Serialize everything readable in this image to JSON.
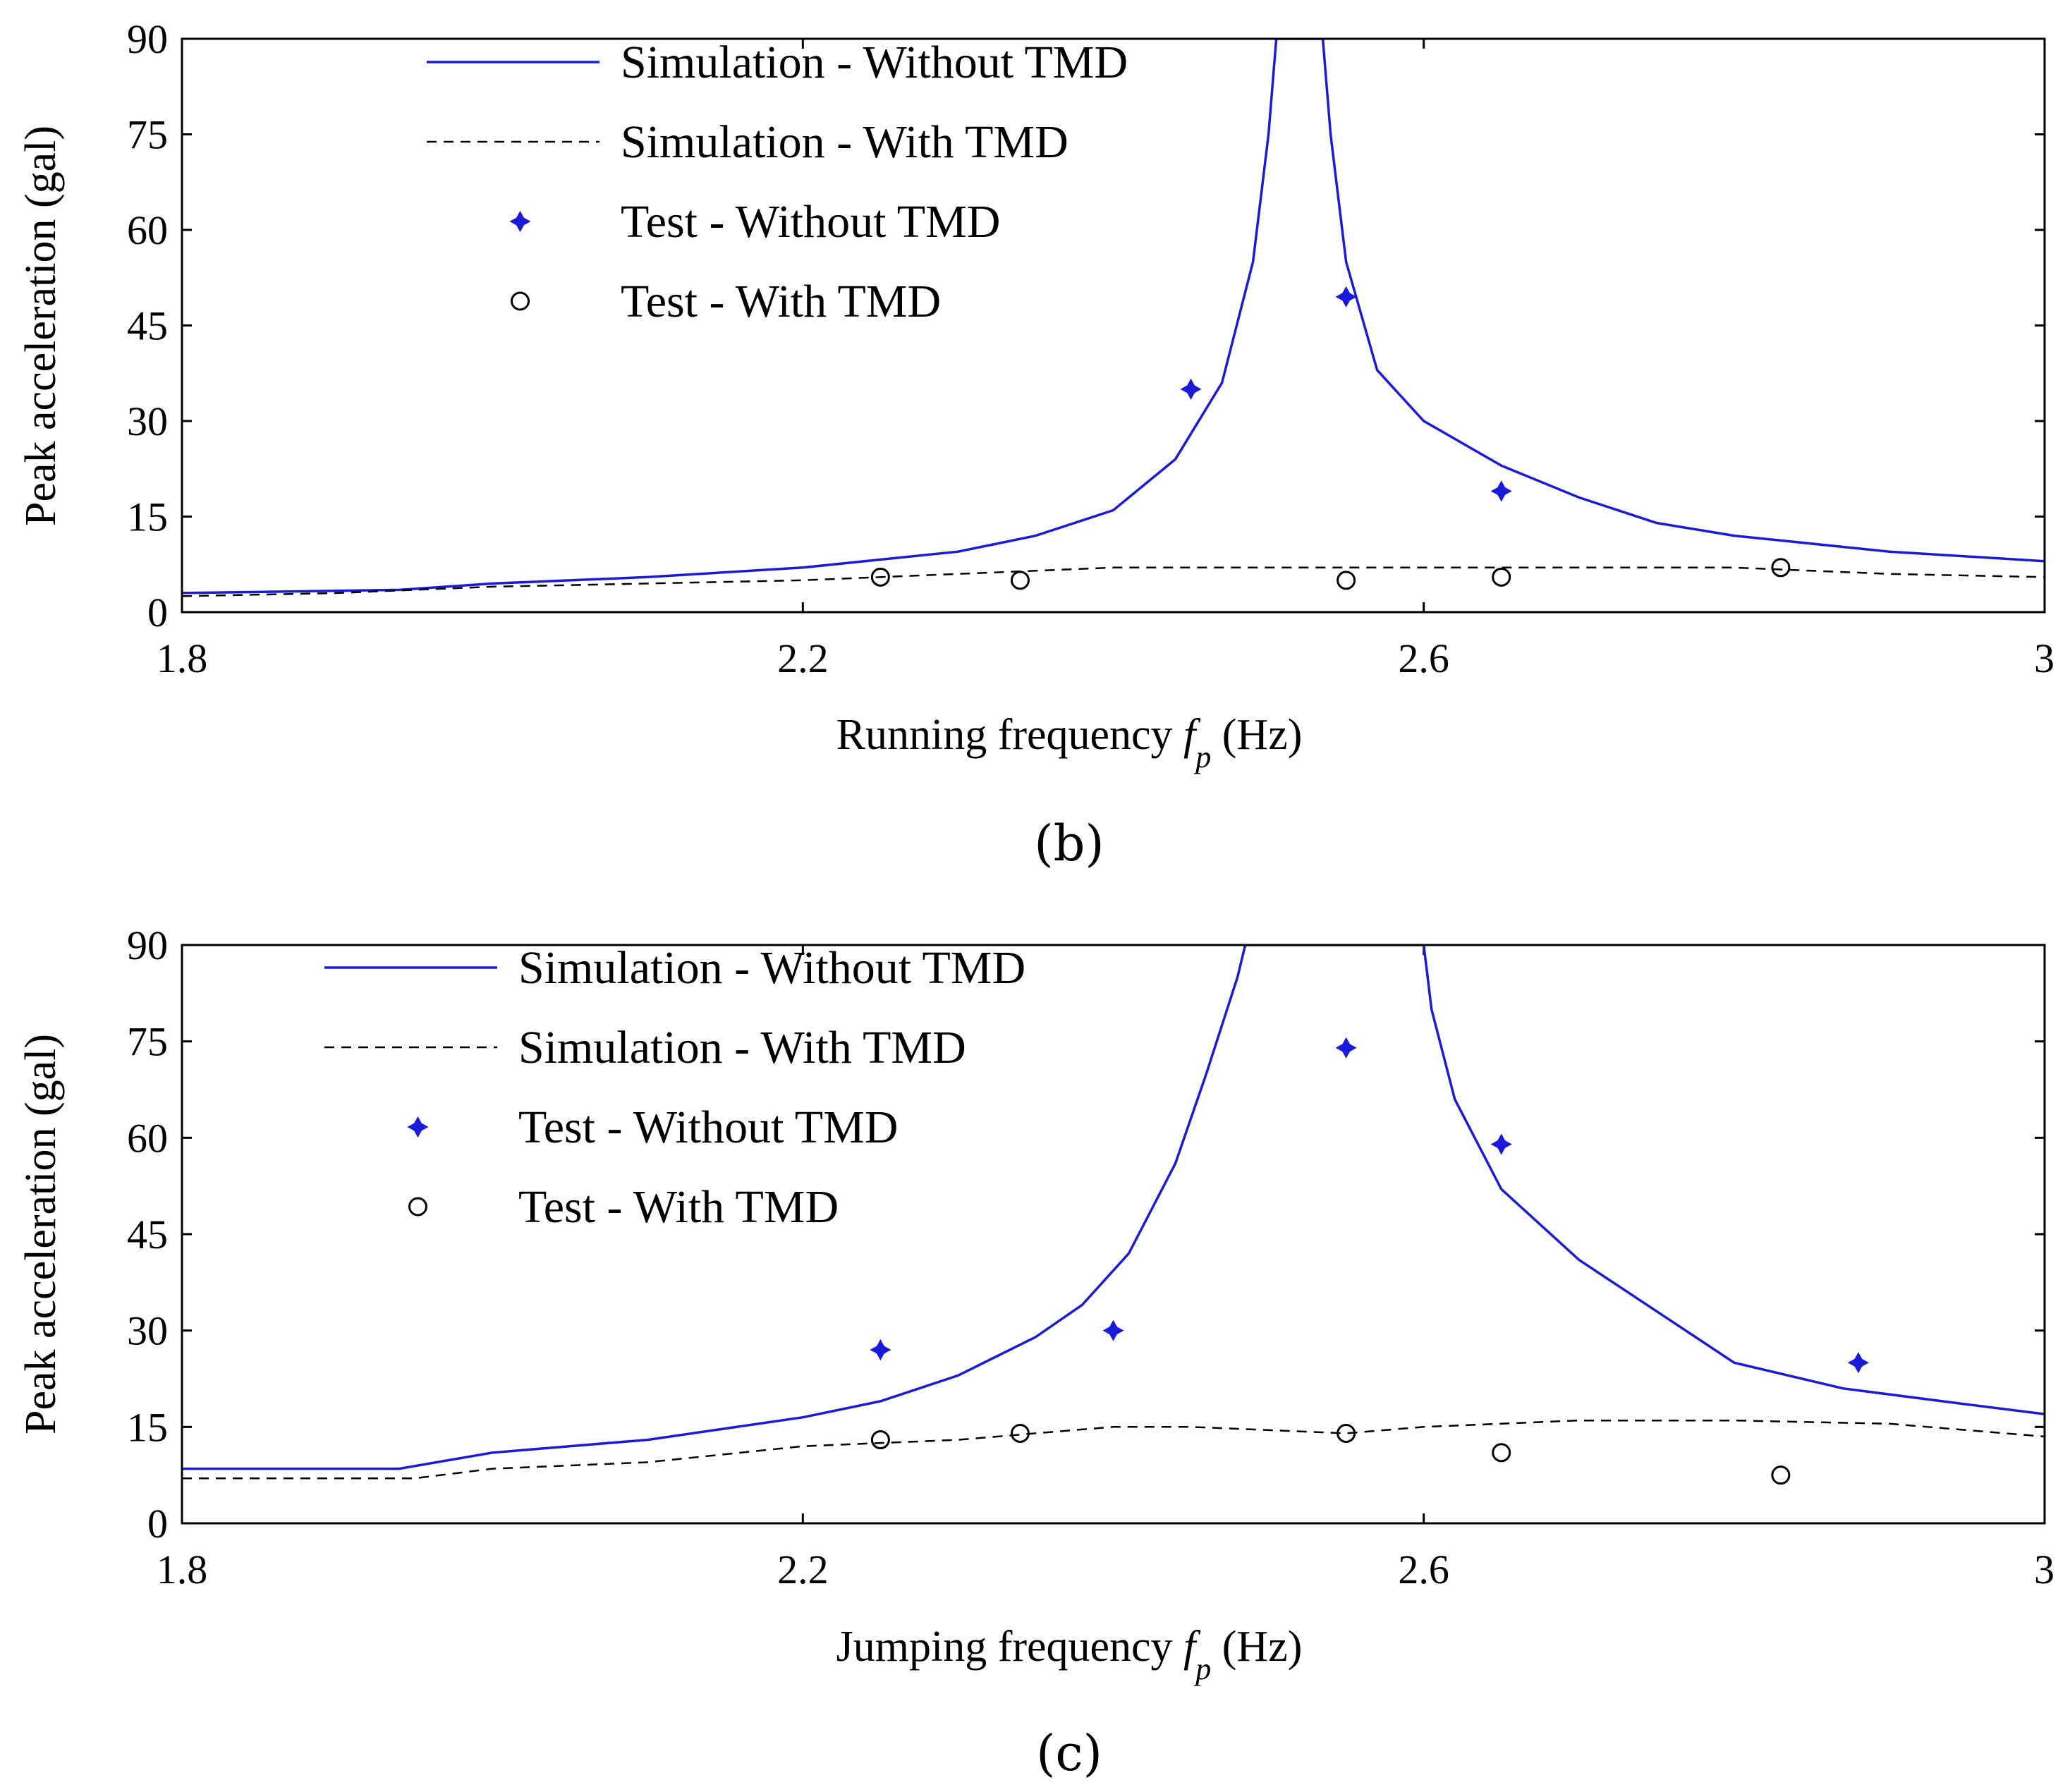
{
  "colors": {
    "blue": "#1a1adb",
    "black": "#000000"
  },
  "chart_data": [
    {
      "type": "line",
      "panel_label": "(b)",
      "xlabel_pre": "Running frequency ",
      "xlabel_var": "f",
      "xlabel_sub": "p",
      "xlabel_post": " (Hz)",
      "ylabel": "Peak acceleration (gal)",
      "xlim": [
        1.8,
        3.0
      ],
      "ylim": [
        0,
        90
      ],
      "xticks": [
        1.8,
        2.2,
        2.6,
        3.0
      ],
      "xtick_labels": [
        "1.8",
        "2.2",
        "2.6",
        "3"
      ],
      "yticks": [
        0,
        15,
        30,
        45,
        60,
        75,
        90
      ],
      "ytick_labels": [
        "0",
        "15",
        "30",
        "45",
        "60",
        "75",
        "90"
      ],
      "legend_position": "top-center",
      "series": [
        {
          "name": "Simulation - Without TMD",
          "style": "solid-line",
          "x": [
            1.8,
            1.94,
            2.0,
            2.1,
            2.2,
            2.3,
            2.35,
            2.4,
            2.44,
            2.47,
            2.49,
            2.5,
            2.505,
            2.535,
            2.54,
            2.55,
            2.57,
            2.6,
            2.65,
            2.7,
            2.75,
            2.8,
            2.9,
            3.0
          ],
          "y": [
            3,
            3.5,
            4.5,
            5.5,
            7,
            9.5,
            12,
            16,
            24,
            36,
            55,
            75,
            90,
            90,
            75,
            55,
            38,
            30,
            23,
            18,
            14,
            12,
            9.5,
            8
          ]
        },
        {
          "name": "Simulation - With TMD",
          "style": "dashed-line",
          "x": [
            1.8,
            1.9,
            2.0,
            2.1,
            2.2,
            2.3,
            2.4,
            2.5,
            2.6,
            2.7,
            2.8,
            2.85,
            2.9,
            3.0
          ],
          "y": [
            2.5,
            3,
            4,
            4.5,
            5,
            6,
            7,
            7,
            7,
            7,
            7,
            6.5,
            6,
            5.5
          ]
        },
        {
          "name": "Test - Without TMD",
          "style": "blue-diamond",
          "x": [
            2.45,
            2.55,
            2.65
          ],
          "y": [
            35,
            49.5,
            19
          ]
        },
        {
          "name": "Test - With TMD",
          "style": "open-circle",
          "x": [
            2.25,
            2.34,
            2.55,
            2.65,
            2.83
          ],
          "y": [
            5.5,
            5,
            5,
            5.5,
            7
          ]
        }
      ]
    },
    {
      "type": "line",
      "panel_label": "(c)",
      "xlabel_pre": "Jumping frequency ",
      "xlabel_var": "f",
      "xlabel_sub": "p",
      "xlabel_post": " (Hz)",
      "ylabel": "Peak acceleration (gal)",
      "xlim": [
        1.8,
        3.0
      ],
      "ylim": [
        0,
        90
      ],
      "xticks": [
        1.8,
        2.2,
        2.6,
        3.0
      ],
      "xtick_labels": [
        "1.8",
        "2.2",
        "2.6",
        "3"
      ],
      "yticks": [
        0,
        15,
        30,
        45,
        60,
        75,
        90
      ],
      "ytick_labels": [
        "0",
        "15",
        "30",
        "45",
        "60",
        "75",
        "90"
      ],
      "legend_position": "top-left",
      "series": [
        {
          "name": "Simulation - Without TMD",
          "style": "solid-line",
          "x": [
            1.8,
            1.94,
            2.0,
            2.1,
            2.2,
            2.25,
            2.3,
            2.35,
            2.38,
            2.41,
            2.44,
            2.46,
            2.48,
            2.485,
            2.6,
            2.605,
            2.62,
            2.65,
            2.7,
            2.75,
            2.8,
            2.87,
            2.95,
            3.0
          ],
          "y": [
            8.5,
            8.5,
            11,
            13,
            16.5,
            19,
            23,
            29,
            34,
            42,
            56,
            70,
            85,
            90,
            90,
            80,
            66,
            52,
            41,
            33,
            25,
            21,
            18.5,
            17
          ]
        },
        {
          "name": "Simulation - With TMD",
          "style": "dashed-line",
          "x": [
            1.8,
            1.95,
            2.0,
            2.1,
            2.2,
            2.3,
            2.35,
            2.4,
            2.45,
            2.55,
            2.6,
            2.7,
            2.8,
            2.9,
            3.0
          ],
          "y": [
            7,
            7,
            8.5,
            9.5,
            12,
            13,
            14,
            15,
            15,
            14,
            15,
            16,
            16,
            15.5,
            13.5
          ]
        },
        {
          "name": "Test - Without TMD",
          "style": "blue-diamond",
          "x": [
            2.25,
            2.4,
            2.55,
            2.65,
            2.88
          ],
          "y": [
            27,
            30,
            74,
            59,
            25
          ]
        },
        {
          "name": "Test - With TMD",
          "style": "open-circle",
          "x": [
            2.25,
            2.34,
            2.55,
            2.65,
            2.83
          ],
          "y": [
            13,
            14,
            14,
            11,
            7.5
          ]
        }
      ]
    }
  ]
}
